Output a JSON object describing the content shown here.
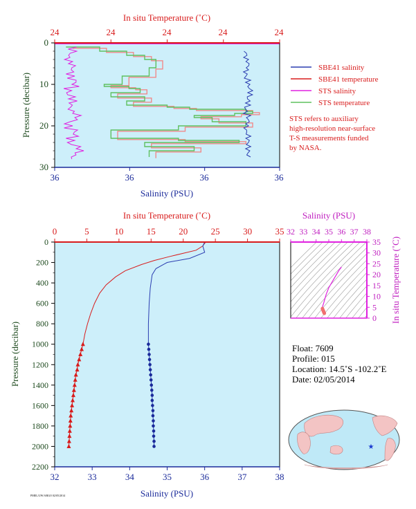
{
  "chart_data": [
    {
      "type": "line",
      "panel": "near-surface",
      "top_axis_label": "In situ Temperature (˚C)",
      "top_ticks": [
        "24",
        "24",
        "24",
        "24",
        "24",
        "24"
      ],
      "bottom_axis_label": "Salinity (PSU)",
      "bottom_ticks": [
        "36",
        "36",
        "36",
        "36"
      ],
      "ylabel": "Pressure (decibar)",
      "y_ticks": [
        "0",
        "10",
        "20",
        "30"
      ],
      "ylim": [
        0,
        30
      ],
      "colors": {
        "sbe_salinity": "#2a3cb0",
        "sbe_temperature": "#d81b1b",
        "sts_salinity": "#e020e0",
        "sts_temperature": "#5fc05f",
        "sts_temperature_alt": "#f08a8a",
        "plot_bg": "#cdeffa",
        "axis_top": "#d81b1b",
        "axis_bottom": "#1a2a9a"
      },
      "series": [
        {
          "name": "SBE41 salinity",
          "color": "#2a3cb0",
          "x": [
            0.85,
            0.86,
            0.85,
            0.86,
            0.87,
            0.86,
            0.85,
            0.86,
            0.85,
            0.86,
            0.86,
            0.86
          ],
          "y": [
            2,
            4,
            6,
            8,
            10,
            12,
            14,
            16,
            18,
            20,
            24,
            27
          ]
        },
        {
          "name": "STS salinity",
          "color": "#e020e0",
          "x": [
            0.06,
            0.04,
            0.06,
            0.05,
            0.07,
            0.04,
            0.06,
            0.05,
            0.08,
            0.04,
            0.07,
            0.05,
            0.09,
            0.06,
            0.08
          ],
          "y": [
            1,
            3,
            5,
            7,
            9,
            11,
            13,
            15,
            17,
            19,
            21,
            23,
            25,
            26.5,
            27.5
          ]
        },
        {
          "name": "STS temperature",
          "color": "#5fc05f",
          "x": [
            0.05,
            0.2,
            0.32,
            0.4,
            0.45,
            0.42,
            0.3,
            0.22,
            0.33,
            0.38,
            0.25,
            0.4,
            0.32,
            0.5,
            0.6,
            0.85,
            0.88,
            0.8,
            0.62,
            0.7,
            0.85,
            0.55,
            0.25,
            0.55,
            0.82,
            0.4,
            0.62,
            0.42
          ],
          "y": [
            1,
            2,
            3,
            4,
            6,
            8,
            10,
            10.5,
            11,
            12,
            13,
            14,
            15,
            15.5,
            16,
            16.5,
            17,
            17.5,
            18,
            19,
            20,
            21,
            23,
            23.5,
            24,
            25,
            26,
            27.5
          ]
        }
      ],
      "legend": [
        {
          "name": "SBE41 salinity",
          "color": "#2a3cb0"
        },
        {
          "name": "SBE41 temperature",
          "color": "#d81b1b"
        },
        {
          "name": "STS salinity",
          "color": "#e020e0"
        },
        {
          "name": "STS temperature",
          "color": "#5fc05f"
        }
      ],
      "note": [
        "STS refers to auxiliary",
        "high-resolution near-surface",
        "T-S measurements funded",
        "by NASA."
      ]
    },
    {
      "type": "line",
      "panel": "full-profile",
      "top_axis_label": "In situ Temperature (˚C)",
      "top_ticks": [
        0,
        5,
        10,
        15,
        20,
        25,
        30,
        35
      ],
      "xlim_temperature": [
        0,
        35
      ],
      "bottom_axis_label": "Salinity (PSU)",
      "bottom_ticks": [
        32,
        33,
        34,
        35,
        36,
        37,
        38
      ],
      "xlim_salinity": [
        32,
        38
      ],
      "ylabel": "Pressure (decibar)",
      "y_ticks": [
        0,
        200,
        400,
        600,
        800,
        1000,
        1200,
        1400,
        1600,
        1800,
        2000,
        2200
      ],
      "ylim": [
        0,
        2200
      ],
      "series": [
        {
          "name": "SBE41 temperature",
          "color": "#d81b1b",
          "unit": "degC",
          "x": [
            23.5,
            23.0,
            22.0,
            18.0,
            15.5,
            13.5,
            11.0,
            9.5,
            8.0,
            7.0,
            6.2,
            5.6,
            5.1,
            4.7,
            4.4
          ],
          "y": [
            0,
            40,
            80,
            140,
            180,
            220,
            280,
            340,
            420,
            500,
            600,
            700,
            800,
            900,
            1000
          ]
        },
        {
          "name": "SBE41 temperature (bottle)",
          "color": "#d81b1b",
          "unit": "degC",
          "x": [
            4.4,
            4.2,
            4.0,
            3.8,
            3.6,
            3.5,
            3.3,
            3.2,
            3.1,
            3.0,
            2.9,
            2.8,
            2.7,
            2.6,
            2.5,
            2.45,
            2.4,
            2.35,
            2.3,
            2.25,
            2.2
          ],
          "y": [
            1000,
            1050,
            1100,
            1150,
            1200,
            1250,
            1300,
            1350,
            1400,
            1450,
            1500,
            1550,
            1600,
            1650,
            1700,
            1750,
            1800,
            1850,
            1900,
            1950,
            2000
          ]
        },
        {
          "name": "SBE41 salinity",
          "color": "#2a3cb0",
          "unit": "PSU",
          "x": [
            36.0,
            35.95,
            36.0,
            35.6,
            35.0,
            34.7,
            34.6,
            34.55,
            34.52,
            34.5,
            34.5
          ],
          "y": [
            0,
            40,
            100,
            160,
            200,
            260,
            320,
            450,
            600,
            800,
            1000
          ]
        },
        {
          "name": "SBE41 salinity (bottle)",
          "color": "#2a3cb0",
          "unit": "PSU",
          "x": [
            34.5,
            34.51,
            34.52,
            34.53,
            34.54,
            34.55,
            34.56,
            34.57,
            34.58,
            34.59,
            34.6,
            34.6,
            34.61,
            34.62,
            34.62,
            34.63,
            34.63,
            34.64,
            34.64,
            34.65,
            34.65
          ],
          "y": [
            1000,
            1050,
            1100,
            1150,
            1200,
            1250,
            1300,
            1350,
            1400,
            1450,
            1500,
            1550,
            1600,
            1650,
            1700,
            1750,
            1800,
            1850,
            1900,
            1950,
            2000
          ]
        }
      ]
    },
    {
      "type": "scatter",
      "panel": "ts-diagram",
      "top_axis_label": "Salinity (PSU)",
      "top_ticks": [
        32,
        33,
        34,
        35,
        36,
        37,
        38
      ],
      "xlim": [
        32,
        38
      ],
      "right_axis_label": "In situ Temperature (˚C)",
      "right_ticks": [
        0,
        5,
        10,
        15,
        20,
        25,
        30,
        35
      ],
      "ylim": [
        0,
        35
      ],
      "series": [
        {
          "name": "T-S curve",
          "color": "#e020e0",
          "x": [
            36.0,
            35.8,
            35.4,
            35.0,
            34.8,
            34.7,
            34.6,
            34.55,
            34.5,
            34.5
          ],
          "y": [
            23.5,
            22.0,
            18.0,
            14.0,
            11.0,
            9.0,
            7.0,
            6.0,
            5.0,
            4.4
          ]
        },
        {
          "name": "T-S bottle",
          "color": "#f07070",
          "x": [
            34.5,
            34.52,
            34.55,
            34.58,
            34.6,
            34.62,
            34.64,
            34.65
          ],
          "y": [
            4.4,
            4.0,
            3.6,
            3.2,
            2.9,
            2.6,
            2.4,
            2.2
          ]
        }
      ]
    }
  ],
  "float_info": {
    "float": "Float:  7609",
    "profile": "Profile:  015",
    "location": "Location:  14.5˚S  -102.2˚E",
    "date": "Date:  02/05/2014"
  },
  "map": {
    "marker_lon": -102.2,
    "marker_lat": -14.5,
    "marker_color": "#1a3ad0",
    "ocean_color": "#bfe9f7",
    "land_color": "#f3c4c4"
  },
  "footer": "PMEL/UW/ARGO 02/05/2014"
}
